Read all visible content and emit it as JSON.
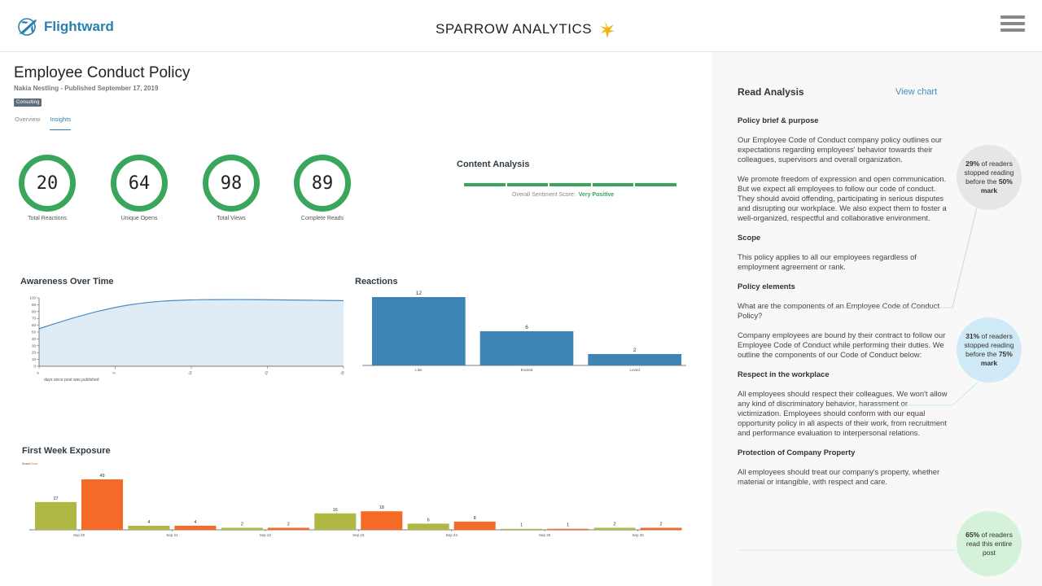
{
  "header": {
    "brand": "Flightward",
    "app_title": "SPARROW ANALYTICS"
  },
  "colors": {
    "brand_blue": "#2b7fb0",
    "ring_green": "#3aa65b",
    "bar_blue": "#3d85b4",
    "bar_olive": "#aeb842",
    "bar_orange": "#f56a26"
  },
  "post": {
    "title": "Employee Conduct Policy",
    "byline": "Nakia Nestling - Published September 17, 2019",
    "tag": "Consulting",
    "tabs": [
      "Overview",
      "Insights"
    ],
    "active_tab": "Insights"
  },
  "metrics": [
    {
      "value": "20",
      "label": "Total Reactions"
    },
    {
      "value": "64",
      "label": "Unique Opens"
    },
    {
      "value": "98",
      "label": "Total Views"
    },
    {
      "value": "89",
      "label": "Complete Reads"
    }
  ],
  "content_analysis": {
    "title": "Content Analysis",
    "sentiment_label": "Overall Sentiment Score:",
    "sentiment_value": "Very Positive"
  },
  "chart_data": [
    {
      "type": "area",
      "title": "Awareness Over Time",
      "xlabel": "days since post was published",
      "ylim": [
        0,
        100
      ],
      "yticks": [
        0,
        10,
        20,
        30,
        40,
        50,
        60,
        70,
        80,
        90,
        100
      ],
      "xticks": [
        "0",
        "5",
        "10",
        "15",
        "20"
      ],
      "x": [
        0,
        2,
        4,
        6,
        8,
        10,
        12,
        14,
        16,
        18,
        20
      ],
      "values": [
        55,
        69,
        81,
        90,
        95,
        97,
        97.5,
        97.5,
        97,
        96.5,
        96
      ]
    },
    {
      "type": "bar",
      "title": "Reactions",
      "categories": [
        "Like",
        "Excited",
        "Loved"
      ],
      "values": [
        12,
        6,
        2
      ],
      "ylim": [
        0,
        12
      ]
    },
    {
      "type": "bar",
      "title": "First Week Exposure",
      "legend": [
        "Reach",
        "Views"
      ],
      "categories": [
        "Sep 20",
        "Sep 21",
        "Sep 22",
        "Sep 23",
        "Sep 24",
        "Sep 25",
        "Sep 26"
      ],
      "series": [
        {
          "name": "Reach",
          "values": [
            27,
            4,
            2,
            16,
            6,
            1,
            2
          ]
        },
        {
          "name": "Views",
          "values": [
            49,
            4,
            2,
            18,
            8,
            1,
            2
          ]
        }
      ],
      "ylim": [
        0,
        49
      ]
    }
  ],
  "panel": {
    "title": "Read Analysis",
    "view_chart": "View chart",
    "sections": [
      {
        "heading": "Policy brief & purpose",
        "paragraphs": [
          "Our Employee Code of Conduct company policy outlines our expectations regarding employees' behavior towards their colleagues, supervisors and overall organization.",
          "We promote freedom of expression and open communication. But we expect all employees to follow our code of conduct. They should avoid offending, participating in serious disputes and disrupting our workplace. We also expect them to foster a well-organized, respectful and collaborative environment."
        ]
      },
      {
        "heading": "Scope",
        "paragraphs": [
          "This policy applies to all our employees regardless of employment agreement or rank."
        ]
      },
      {
        "heading": "Policy elements",
        "paragraphs": [
          "What are the components of an Employee Code of Conduct Policy?",
          "Company employees are bound by their contract to follow our Employee Code of Conduct while performing their duties. We outline the components of our Code of Conduct below:"
        ]
      },
      {
        "heading": "Respect in the workplace",
        "paragraphs": [
          "All employees should respect their colleagues. We won't allow any kind of discriminatory behavior, harassment or victimization. Employees should conform with our equal opportunity policy in all aspects of their work, from recruitment and performance evaluation to interpersonal relations."
        ]
      },
      {
        "heading": "Protection of Company Property",
        "paragraphs": [
          "All employees should treat our company's property, whether material or intangible, with respect and care."
        ]
      }
    ],
    "bubbles": [
      {
        "pct": "29%",
        "pre": "of readers stopped reading before the",
        "mark": "50%",
        "post": "mark",
        "color": "#e6e6e6"
      },
      {
        "pct": "31%",
        "pre": "of readers stopped reading before the",
        "mark": "75%",
        "post": "mark",
        "color": "#cfe9f7"
      },
      {
        "pct": "65%",
        "pre": "of readers read this entire post",
        "mark": "",
        "post": "",
        "color": "#d4f2d9"
      }
    ]
  }
}
